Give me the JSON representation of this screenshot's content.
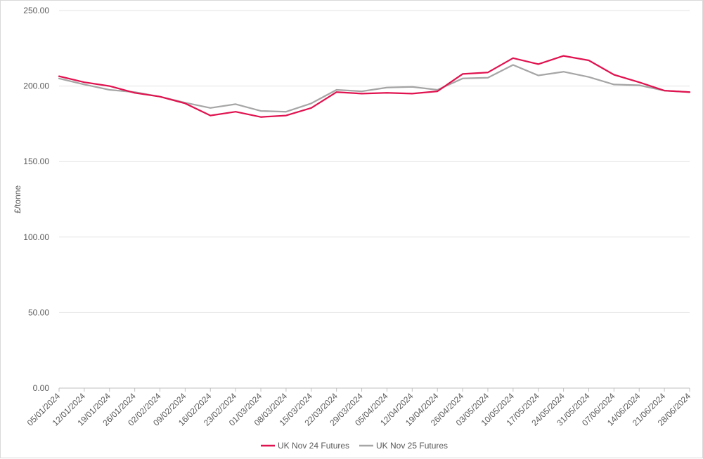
{
  "chart_data": {
    "type": "line",
    "title": "",
    "xlabel": "",
    "ylabel": "£/tonne",
    "ylim": [
      0,
      250
    ],
    "ytick_values": [
      0,
      50,
      100,
      150,
      200,
      250
    ],
    "ytick_labels": [
      "0.00",
      "50.00",
      "100.00",
      "150.00",
      "200.00",
      "250.00"
    ],
    "categories": [
      "05/01/2024",
      "12/01/2024",
      "19/01/2024",
      "26/01/2024",
      "02/02/2024",
      "09/02/2024",
      "16/02/2024",
      "23/02/2024",
      "01/03/2024",
      "08/03/2024",
      "15/03/2024",
      "22/03/2024",
      "29/03/2024",
      "05/04/2024",
      "12/04/2024",
      "19/04/2024",
      "26/04/2024",
      "03/05/2024",
      "10/05/2024",
      "17/05/2024",
      "24/05/2024",
      "31/05/2024",
      "07/06/2024",
      "14/06/2024",
      "21/06/2024",
      "28/06/2024"
    ],
    "grid": "horizontal",
    "legend_position": "bottom",
    "series": [
      {
        "name": "UK Nov 24 Futures",
        "color": "#e0124f",
        "values": [
          206.5,
          202.5,
          200.0,
          195.5,
          193.0,
          188.5,
          180.5,
          183.0,
          179.5,
          180.5,
          185.5,
          196.0,
          195.0,
          195.5,
          195.0,
          196.5,
          208.0,
          209.0,
          218.5,
          214.5,
          220.0,
          217.0,
          207.5,
          202.5,
          197.0,
          196.0
        ]
      },
      {
        "name": "UK Nov 25 Futures",
        "color": "#a6a6a6",
        "values": [
          205.0,
          201.0,
          197.5,
          196.0,
          193.0,
          189.0,
          185.5,
          188.0,
          183.5,
          183.0,
          188.5,
          197.5,
          196.5,
          199.0,
          199.5,
          197.5,
          205.0,
          205.5,
          214.0,
          207.0,
          209.5,
          206.0,
          201.0,
          200.5,
          197.0,
          196.0
        ]
      }
    ]
  }
}
